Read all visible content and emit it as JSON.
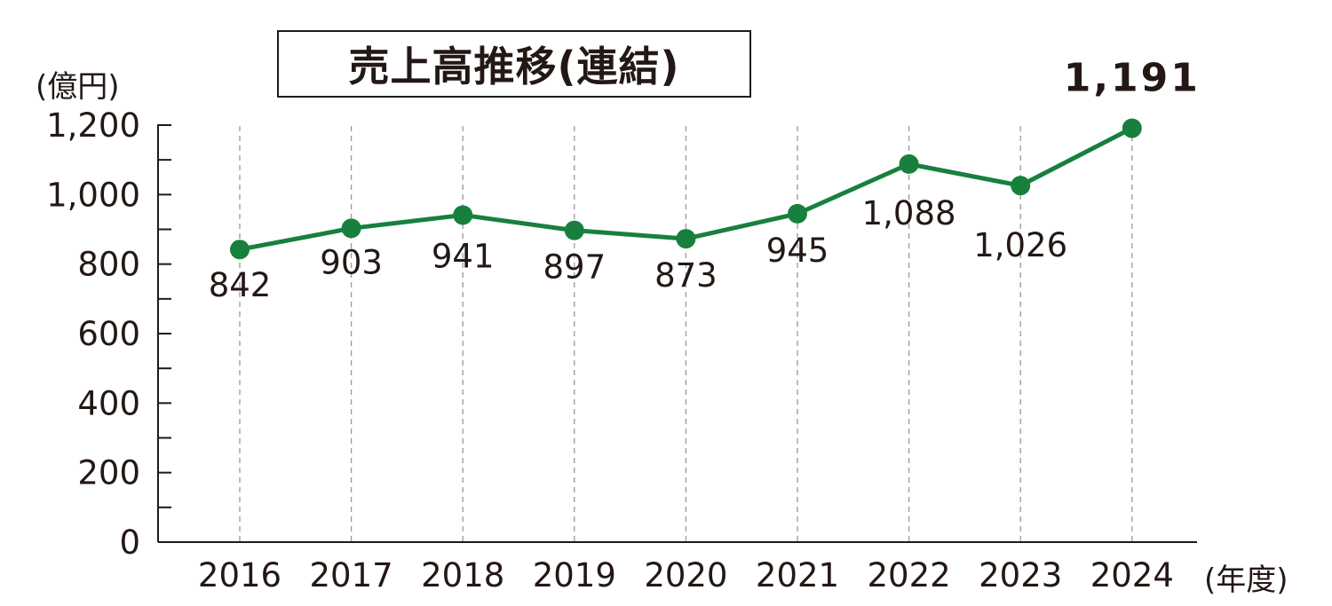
{
  "title": "売上高推移(連結)",
  "y_unit": "(億円)",
  "x_unit": "(年度)",
  "colors": {
    "line": "#17803D",
    "marker": "#17803D",
    "text": "#231815",
    "grid": "#999999"
  },
  "chart_data": {
    "type": "line",
    "title": "売上高推移(連結)",
    "xlabel": "(年度)",
    "ylabel": "(億円)",
    "categories": [
      "2016",
      "2017",
      "2018",
      "2019",
      "2020",
      "2021",
      "2022",
      "2023",
      "2024"
    ],
    "series": [
      {
        "values": [
          842,
          903,
          941,
          897,
          873,
          945,
          1088,
          1026,
          1191
        ]
      }
    ],
    "data_labels": [
      "842",
      "903",
      "941",
      "897",
      "873",
      "945",
      "1,088",
      "1,026",
      "1,191"
    ],
    "y_ticks": [
      "0",
      "200",
      "400",
      "600",
      "800",
      "1,000",
      "1,200"
    ],
    "ylim": [
      0,
      1200
    ],
    "grid": "vertical dashed",
    "legend": "none",
    "highlight_last_label": true
  }
}
